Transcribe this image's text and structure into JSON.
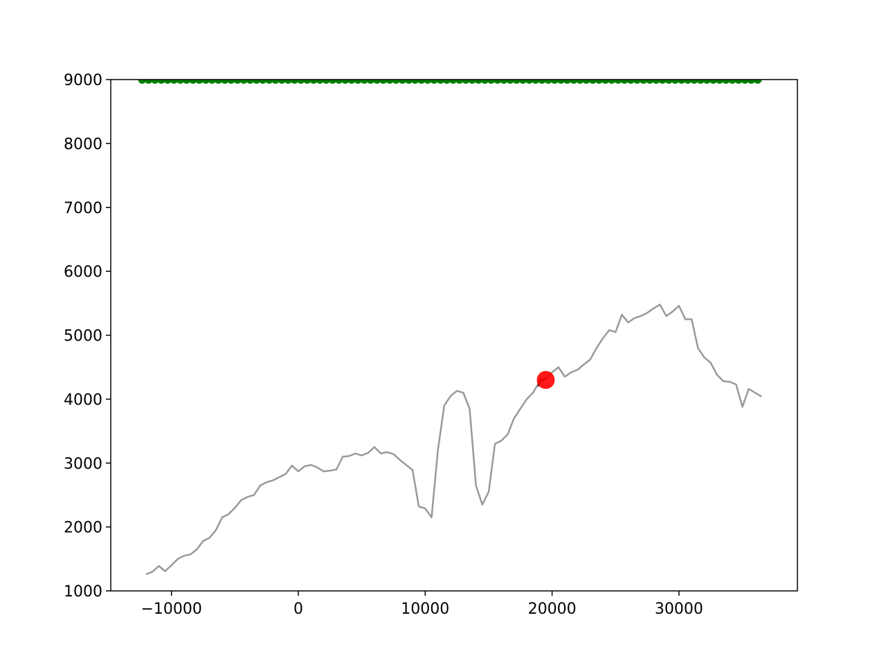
{
  "chart_data": {
    "type": "line",
    "xlim": [
      -14785,
      39334
    ],
    "ylim": [
      1000,
      9000
    ],
    "xticks": [
      {
        "value": -10000,
        "label": "−10000"
      },
      0,
      10000,
      20000,
      30000
    ],
    "yticks": [
      1000,
      2000,
      3000,
      4000,
      5000,
      6000,
      7000,
      8000,
      9000
    ],
    "grid": false,
    "series": [
      {
        "type": "line",
        "color": "#999999",
        "x": [
          -12000,
          -11500,
          -11000,
          -10500,
          -10000,
          -9500,
          -9000,
          -8500,
          -8000,
          -7500,
          -7000,
          -6500,
          -6000,
          -5500,
          -5000,
          -4500,
          -4000,
          -3500,
          -3000,
          -2500,
          -2000,
          -1500,
          -1000,
          -500,
          0,
          500,
          1000,
          1500,
          2000,
          2500,
          3000,
          3500,
          4000,
          4500,
          5000,
          5500,
          6000,
          6500,
          7000,
          7500,
          8000,
          8500,
          9000,
          9500,
          10000,
          10500,
          11000,
          11500,
          12000,
          12500,
          13000,
          13500,
          14000,
          14500,
          15000,
          15500,
          16000,
          16500,
          17000,
          17500,
          18000,
          18500,
          19000,
          19500,
          20000,
          20500,
          21000,
          21500,
          22000,
          22500,
          23000,
          23500,
          24000,
          24500,
          25000,
          25500,
          26000,
          26500,
          27000,
          27500,
          28000,
          28500,
          29000,
          29500,
          30000,
          30500,
          31000,
          31500,
          32000,
          32500,
          33000,
          33500,
          34000,
          34500,
          35000,
          35500,
          36000,
          36500
        ],
        "values": [
          1260,
          1300,
          1390,
          1310,
          1400,
          1500,
          1550,
          1570,
          1650,
          1780,
          1830,
          1950,
          2150,
          2200,
          2300,
          2420,
          2470,
          2500,
          2650,
          2700,
          2730,
          2780,
          2830,
          2960,
          2870,
          2950,
          2970,
          2930,
          2870,
          2880,
          2900,
          3100,
          3110,
          3150,
          3120,
          3160,
          3250,
          3150,
          3170,
          3140,
          3050,
          2970,
          2890,
          2320,
          2290,
          2150,
          3200,
          3900,
          4050,
          4130,
          4100,
          3850,
          2650,
          2350,
          2550,
          3300,
          3350,
          3450,
          3700,
          3850,
          4000,
          4100,
          4270,
          4320,
          4420,
          4500,
          4350,
          4420,
          4460,
          4540,
          4620,
          4800,
          4950,
          5080,
          5050,
          5320,
          5200,
          5270,
          5300,
          5350,
          5420,
          5480,
          5300,
          5370,
          5460,
          5250,
          5250,
          4800,
          4650,
          4570,
          4380,
          4280,
          4270,
          4230,
          3880,
          4160,
          4100,
          4040
        ]
      },
      {
        "type": "line",
        "color": "#222222",
        "x": [
          18900,
          19100,
          19300,
          19600
        ],
        "values": [
          4200,
          4310,
          4290,
          4350
        ]
      },
      {
        "type": "scatter",
        "color": "#008000",
        "x": [
          -12300,
          -11800,
          -11300,
          -10800,
          -10300,
          -9800,
          -9300,
          -8800,
          -8300,
          -7800,
          -7300,
          -6800,
          -6300,
          -5800,
          -5300,
          -4800,
          -4300,
          -3800,
          -3300,
          -2800,
          -2300,
          -1800,
          -1300,
          -800,
          -300,
          200,
          700,
          1200,
          1700,
          2200,
          2700,
          3200,
          3700,
          4200,
          4700,
          5200,
          5700,
          6200,
          6700,
          7200,
          7700,
          8200,
          8700,
          9200,
          9700,
          10200,
          10700,
          11200,
          11700,
          12200,
          12700,
          13200,
          13700,
          14200,
          14700,
          15200,
          15700,
          16200,
          16700,
          17200,
          17700,
          18200,
          18700,
          19200,
          19700,
          20200,
          20700,
          21200,
          21700,
          22200,
          22700,
          23200,
          23700,
          24200,
          24700,
          25200,
          25700,
          26200,
          26700,
          27200,
          27700,
          28200,
          28700,
          29200,
          29700,
          30200,
          30700,
          31200,
          31700,
          32200,
          32700,
          33200,
          33700,
          34200,
          34700,
          35200,
          35700,
          36200
        ],
        "values": [
          9000,
          9000,
          9000,
          9000,
          9000,
          9000,
          9000,
          9000,
          9000,
          9000,
          9000,
          9000,
          9000,
          9000,
          9000,
          9000,
          9000,
          9000,
          9000,
          9000,
          9000,
          9000,
          9000,
          9000,
          9000,
          9000,
          9000,
          9000,
          9000,
          9000,
          9000,
          9000,
          9000,
          9000,
          9000,
          9000,
          9000,
          9000,
          9000,
          9000,
          9000,
          9000,
          9000,
          9000,
          9000,
          9000,
          9000,
          9000,
          9000,
          9000,
          9000,
          9000,
          9000,
          9000,
          9000,
          9000,
          9000,
          9000,
          9000,
          9000,
          9000,
          9000,
          9000,
          9000,
          9000,
          9000,
          9000,
          9000,
          9000,
          9000,
          9000,
          9000,
          9000,
          9000,
          9000,
          9000,
          9000,
          9000,
          9000,
          9000,
          9000,
          9000,
          9000,
          9000,
          9000,
          9000,
          9000,
          9000,
          9000,
          9000,
          9000,
          9000,
          9000,
          9000,
          9000,
          9000,
          9000,
          9000
        ]
      },
      {
        "type": "scatter",
        "color": "#ff0000",
        "size": "large",
        "x": [
          19500
        ],
        "values": [
          4300
        ]
      }
    ]
  }
}
